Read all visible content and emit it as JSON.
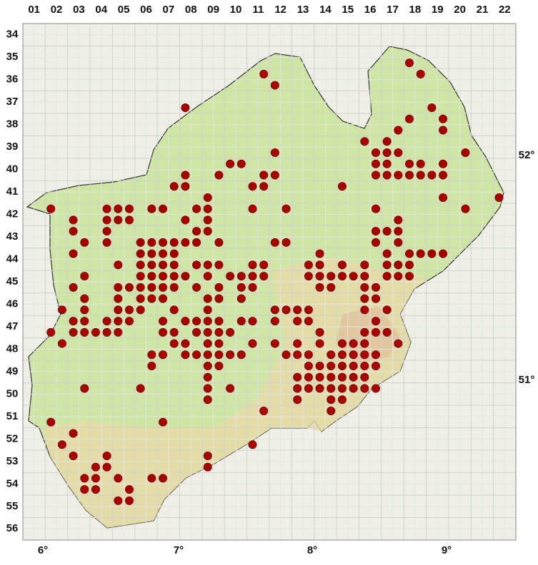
{
  "columns": [
    "01",
    "02",
    "03",
    "04",
    "05",
    "06",
    "07",
    "08",
    "09",
    "10",
    "11",
    "12",
    "13",
    "14",
    "15",
    "16",
    "17",
    "18",
    "19",
    "20",
    "21",
    "22"
  ],
  "rows": [
    "34",
    "35",
    "36",
    "37",
    "38",
    "39",
    "40",
    "41",
    "42",
    "43",
    "44",
    "45",
    "46",
    "47",
    "48",
    "49",
    "50",
    "51",
    "52",
    "53",
    "54",
    "55",
    "56"
  ],
  "longitudes": [
    "6°",
    "7°",
    "8°",
    "9°"
  ],
  "latitudes": [
    "52°",
    "51°"
  ],
  "occurrences": [
    [
      34,
      3
    ],
    [
      35,
      4
    ],
    [
      21,
      4
    ],
    [
      22,
      5
    ],
    [
      14,
      7
    ],
    [
      36,
      7
    ],
    [
      34,
      8
    ],
    [
      37,
      8
    ],
    [
      33,
      9
    ],
    [
      37,
      9
    ],
    [
      30,
      10
    ],
    [
      32,
      10
    ],
    [
      22,
      11
    ],
    [
      31,
      11
    ],
    [
      32,
      11
    ],
    [
      33,
      11
    ],
    [
      39,
      11
    ],
    [
      18,
      12
    ],
    [
      19,
      12
    ],
    [
      31,
      12
    ],
    [
      32,
      12
    ],
    [
      34,
      12
    ],
    [
      35,
      12
    ],
    [
      37,
      12
    ],
    [
      14,
      13
    ],
    [
      17,
      13
    ],
    [
      21,
      13
    ],
    [
      22,
      13
    ],
    [
      31,
      13
    ],
    [
      32,
      13
    ],
    [
      33,
      13
    ],
    [
      34,
      13
    ],
    [
      35,
      13
    ],
    [
      36,
      13
    ],
    [
      37,
      13
    ],
    [
      13,
      14
    ],
    [
      14,
      14
    ],
    [
      20,
      14
    ],
    [
      21,
      14
    ],
    [
      28,
      14
    ],
    [
      16,
      15
    ],
    [
      37,
      15
    ],
    [
      42,
      15
    ],
    [
      2,
      16
    ],
    [
      7,
      16
    ],
    [
      8,
      16
    ],
    [
      9,
      16
    ],
    [
      11,
      16
    ],
    [
      12,
      16
    ],
    [
      15,
      16
    ],
    [
      16,
      16
    ],
    [
      20,
      16
    ],
    [
      23,
      16
    ],
    [
      31,
      16
    ],
    [
      39,
      16
    ],
    [
      4,
      17
    ],
    [
      7,
      17
    ],
    [
      8,
      17
    ],
    [
      9,
      17
    ],
    [
      14,
      17
    ],
    [
      16,
      17
    ],
    [
      33,
      17
    ],
    [
      4,
      18
    ],
    [
      7,
      18
    ],
    [
      15,
      18
    ],
    [
      16,
      18
    ],
    [
      31,
      18
    ],
    [
      32,
      18
    ],
    [
      33,
      18
    ],
    [
      5,
      19
    ],
    [
      7,
      19
    ],
    [
      10,
      19
    ],
    [
      11,
      19
    ],
    [
      12,
      19
    ],
    [
      13,
      19
    ],
    [
      14,
      19
    ],
    [
      15,
      19
    ],
    [
      17,
      19
    ],
    [
      22,
      19
    ],
    [
      23,
      19
    ],
    [
      31,
      19
    ],
    [
      33,
      19
    ],
    [
      4,
      20
    ],
    [
      10,
      20
    ],
    [
      11,
      20
    ],
    [
      12,
      20
    ],
    [
      13,
      20
    ],
    [
      26,
      20
    ],
    [
      32,
      20
    ],
    [
      34,
      20
    ],
    [
      35,
      20
    ],
    [
      36,
      20
    ],
    [
      37,
      20
    ],
    [
      8,
      21
    ],
    [
      10,
      21
    ],
    [
      11,
      21
    ],
    [
      12,
      21
    ],
    [
      13,
      21
    ],
    [
      15,
      21
    ],
    [
      16,
      21
    ],
    [
      17,
      21
    ],
    [
      20,
      21
    ],
    [
      21,
      21
    ],
    [
      25,
      21
    ],
    [
      26,
      21
    ],
    [
      28,
      21
    ],
    [
      30,
      21
    ],
    [
      32,
      21
    ],
    [
      33,
      21
    ],
    [
      34,
      21
    ],
    [
      5,
      22
    ],
    [
      10,
      22
    ],
    [
      11,
      22
    ],
    [
      12,
      22
    ],
    [
      13,
      22
    ],
    [
      14,
      22
    ],
    [
      16,
      22
    ],
    [
      18,
      22
    ],
    [
      19,
      22
    ],
    [
      20,
      22
    ],
    [
      21,
      22
    ],
    [
      25,
      22
    ],
    [
      26,
      22
    ],
    [
      27,
      22
    ],
    [
      28,
      22
    ],
    [
      29,
      22
    ],
    [
      30,
      22
    ],
    [
      32,
      22
    ],
    [
      33,
      22
    ],
    [
      34,
      22
    ],
    [
      4,
      23
    ],
    [
      8,
      23
    ],
    [
      9,
      23
    ],
    [
      10,
      23
    ],
    [
      11,
      23
    ],
    [
      12,
      23
    ],
    [
      13,
      23
    ],
    [
      15,
      23
    ],
    [
      17,
      23
    ],
    [
      19,
      23
    ],
    [
      20,
      23
    ],
    [
      26,
      23
    ],
    [
      27,
      23
    ],
    [
      30,
      23
    ],
    [
      31,
      23
    ],
    [
      5,
      24
    ],
    [
      8,
      24
    ],
    [
      10,
      24
    ],
    [
      11,
      24
    ],
    [
      12,
      24
    ],
    [
      16,
      24
    ],
    [
      17,
      24
    ],
    [
      19,
      24
    ],
    [
      30,
      24
    ],
    [
      31,
      24
    ],
    [
      3,
      25
    ],
    [
      5,
      25
    ],
    [
      8,
      25
    ],
    [
      9,
      25
    ],
    [
      10,
      25
    ],
    [
      13,
      25
    ],
    [
      16,
      25
    ],
    [
      22,
      25
    ],
    [
      23,
      25
    ],
    [
      24,
      25
    ],
    [
      25,
      25
    ],
    [
      30,
      25
    ],
    [
      32,
      25
    ],
    [
      4,
      26
    ],
    [
      5,
      26
    ],
    [
      7,
      26
    ],
    [
      8,
      26
    ],
    [
      9,
      26
    ],
    [
      12,
      26
    ],
    [
      14,
      26
    ],
    [
      15,
      26
    ],
    [
      16,
      26
    ],
    [
      17,
      26
    ],
    [
      19,
      26
    ],
    [
      20,
      26
    ],
    [
      22,
      26
    ],
    [
      24,
      26
    ],
    [
      25,
      26
    ],
    [
      31,
      26
    ],
    [
      2,
      27
    ],
    [
      4,
      27
    ],
    [
      5,
      27
    ],
    [
      6,
      27
    ],
    [
      7,
      27
    ],
    [
      8,
      27
    ],
    [
      12,
      27
    ],
    [
      13,
      27
    ],
    [
      15,
      27
    ],
    [
      16,
      27
    ],
    [
      17,
      27
    ],
    [
      18,
      27
    ],
    [
      26,
      27
    ],
    [
      30,
      27
    ],
    [
      31,
      27
    ],
    [
      32,
      27
    ],
    [
      3,
      28
    ],
    [
      13,
      28
    ],
    [
      14,
      28
    ],
    [
      16,
      28
    ],
    [
      17,
      28
    ],
    [
      20,
      28
    ],
    [
      22,
      28
    ],
    [
      24,
      28
    ],
    [
      26,
      28
    ],
    [
      28,
      28
    ],
    [
      29,
      28
    ],
    [
      30,
      28
    ],
    [
      33,
      28
    ],
    [
      11,
      29
    ],
    [
      12,
      29
    ],
    [
      14,
      29
    ],
    [
      15,
      29
    ],
    [
      16,
      29
    ],
    [
      17,
      29
    ],
    [
      18,
      29
    ],
    [
      19,
      29
    ],
    [
      23,
      29
    ],
    [
      24,
      29
    ],
    [
      25,
      29
    ],
    [
      27,
      29
    ],
    [
      28,
      29
    ],
    [
      29,
      29
    ],
    [
      30,
      29
    ],
    [
      31,
      29
    ],
    [
      11,
      30
    ],
    [
      16,
      30
    ],
    [
      17,
      30
    ],
    [
      25,
      30
    ],
    [
      26,
      30
    ],
    [
      27,
      30
    ],
    [
      28,
      30
    ],
    [
      29,
      30
    ],
    [
      30,
      30
    ],
    [
      31,
      30
    ],
    [
      16,
      31
    ],
    [
      24,
      31
    ],
    [
      25,
      31
    ],
    [
      26,
      31
    ],
    [
      27,
      31
    ],
    [
      28,
      31
    ],
    [
      29,
      31
    ],
    [
      30,
      31
    ],
    [
      5,
      32
    ],
    [
      10,
      32
    ],
    [
      16,
      32
    ],
    [
      18,
      32
    ],
    [
      24,
      32
    ],
    [
      25,
      32
    ],
    [
      26,
      32
    ],
    [
      27,
      32
    ],
    [
      28,
      32
    ],
    [
      29,
      32
    ],
    [
      30,
      32
    ],
    [
      31,
      32
    ],
    [
      16,
      33
    ],
    [
      24,
      33
    ],
    [
      27,
      33
    ],
    [
      28,
      33
    ],
    [
      21,
      34
    ],
    [
      27,
      34
    ],
    [
      2,
      35
    ],
    [
      12,
      35
    ],
    [
      4,
      36
    ],
    [
      3,
      37
    ],
    [
      20,
      37
    ],
    [
      4,
      38
    ],
    [
      7,
      38
    ],
    [
      16,
      38
    ],
    [
      6,
      39
    ],
    [
      7,
      39
    ],
    [
      16,
      39
    ],
    [
      5,
      40
    ],
    [
      6,
      40
    ],
    [
      8,
      40
    ],
    [
      11,
      40
    ],
    [
      12,
      40
    ],
    [
      5,
      41
    ],
    [
      6,
      41
    ],
    [
      9,
      41
    ],
    [
      8,
      42
    ],
    [
      9,
      42
    ]
  ]
}
